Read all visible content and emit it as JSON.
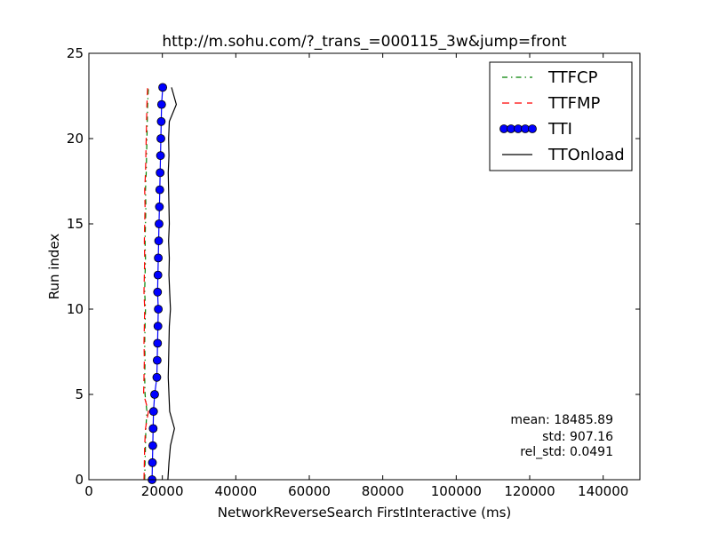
{
  "chart_data": {
    "type": "line",
    "title": "http://m.sohu.com/?_trans_=000115_3w&jump=front",
    "xlabel": "NetworkReverseSearch FirstInteractive (ms)",
    "ylabel": "Run index",
    "xlim": [
      0,
      150000
    ],
    "ylim": [
      0,
      25
    ],
    "xticks": [
      0,
      20000,
      40000,
      60000,
      80000,
      100000,
      120000,
      140000
    ],
    "yticks": [
      0,
      5,
      10,
      15,
      20,
      25
    ],
    "x_tick_labels": [
      "0",
      "20000",
      "40000",
      "60000",
      "80000",
      "100000",
      "120000",
      "140000"
    ],
    "y_tick_labels": [
      "0",
      "5",
      "10",
      "15",
      "20",
      "25"
    ],
    "grid": false,
    "legend_position": "top-right",
    "series": [
      {
        "name": "TTFCP",
        "color": "#008000",
        "style": "dashdot",
        "y": [
          0,
          1,
          2,
          3,
          4,
          5,
          6,
          7,
          8,
          9,
          10,
          11,
          12,
          13,
          14,
          15,
          16,
          17,
          18,
          19,
          20,
          21,
          22,
          23
        ],
        "x": [
          15200,
          15300,
          15400,
          15500,
          15800,
          15300,
          15200,
          15300,
          15200,
          15300,
          15400,
          15200,
          15300,
          15400,
          15300,
          15400,
          15500,
          15400,
          15600,
          15700,
          15800,
          15900,
          16000,
          16200
        ]
      },
      {
        "name": "TTFMP",
        "color": "#ff0000",
        "style": "dashed",
        "y": [
          0,
          1,
          2,
          3,
          4,
          5,
          6,
          7,
          8,
          9,
          10,
          11,
          12,
          13,
          14,
          15,
          16,
          17,
          18,
          19,
          20,
          21,
          22,
          23
        ],
        "x": [
          15000,
          15100,
          15200,
          15400,
          16200,
          14900,
          15000,
          15100,
          15000,
          15100,
          15200,
          15000,
          15100,
          15200,
          15100,
          15200,
          15300,
          15200,
          15400,
          15500,
          15600,
          15700,
          15800,
          16000
        ]
      },
      {
        "name": "TTI",
        "color": "#0000ff",
        "style": "solid-marker",
        "y": [
          0,
          1,
          2,
          3,
          4,
          5,
          6,
          7,
          8,
          9,
          10,
          11,
          12,
          13,
          14,
          15,
          16,
          17,
          18,
          19,
          20,
          21,
          22,
          23
        ],
        "x": [
          17200,
          17300,
          17400,
          17500,
          17600,
          17900,
          18500,
          18600,
          18700,
          18800,
          18900,
          18700,
          18800,
          18900,
          19000,
          19100,
          19200,
          19300,
          19400,
          19500,
          19600,
          19700,
          19800,
          20100
        ]
      },
      {
        "name": "TTOnload",
        "color": "#000000",
        "style": "solid",
        "y": [
          0,
          1,
          2,
          3,
          4,
          5,
          6,
          7,
          8,
          9,
          10,
          11,
          12,
          13,
          14,
          15,
          16,
          17,
          18,
          19,
          20,
          21,
          22,
          23
        ],
        "x": [
          21500,
          21800,
          22200,
          23300,
          22000,
          21800,
          21600,
          21700,
          21800,
          21900,
          22200,
          22000,
          21800,
          21900,
          21700,
          21900,
          21800,
          21700,
          21600,
          21800,
          21700,
          21900,
          23800,
          22500
        ]
      }
    ],
    "stats": {
      "mean": "mean: 18485.89",
      "std": "std: 907.16",
      "rel_std": "rel_std: 0.0491"
    }
  }
}
